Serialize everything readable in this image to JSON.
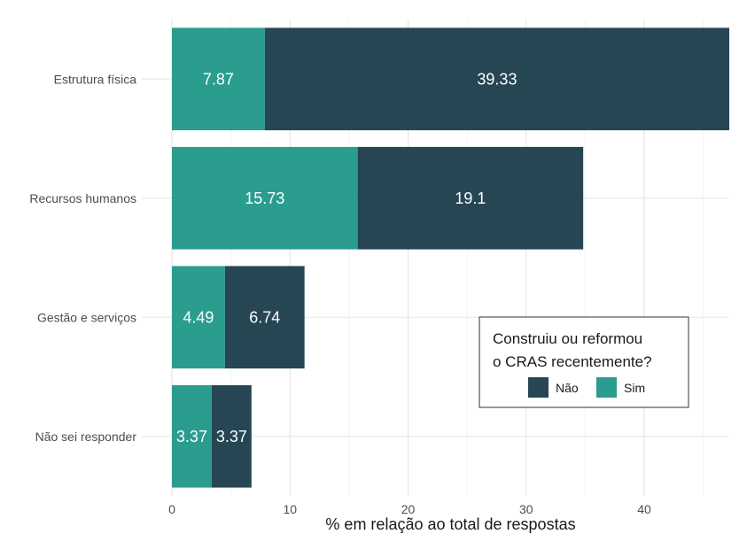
{
  "chart_data": {
    "type": "bar",
    "orientation": "horizontal",
    "stacked": true,
    "categories": [
      "Estrutura física",
      "Recursos humanos",
      "Gestão e serviços",
      "Não sei responder"
    ],
    "series": [
      {
        "name": "Sim",
        "values": [
          7.87,
          15.73,
          4.49,
          3.37
        ],
        "color": "#2a9d8f"
      },
      {
        "name": "Não",
        "values": [
          39.33,
          19.1,
          6.74,
          3.37
        ],
        "color": "#264653"
      }
    ],
    "xlabel": "% em relação ao total de respostas",
    "ylabel": "",
    "xlim": [
      0,
      47.2
    ],
    "xticks": [
      0,
      10,
      20,
      30,
      40
    ],
    "grid": true,
    "legend": {
      "title_lines": [
        "Construiu ou reformou",
        "o CRAS recentemente?"
      ],
      "entries": [
        "Não",
        "Sim"
      ],
      "placement": "bottom-right"
    }
  }
}
